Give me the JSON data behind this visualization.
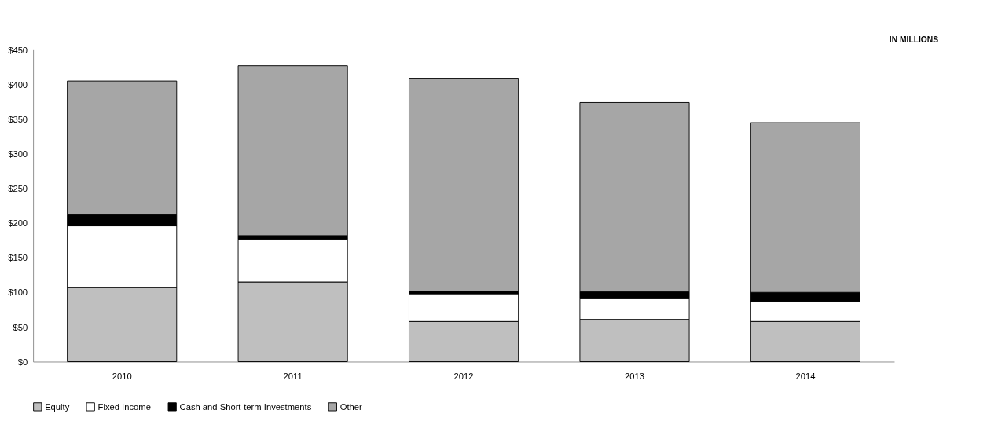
{
  "chart_data": {
    "type": "bar",
    "stacked": true,
    "categories": [
      "2010",
      "2011",
      "2012",
      "2013",
      "2014"
    ],
    "series": [
      {
        "name": "Equity",
        "color": "#bfbfbf",
        "values": [
          107,
          115,
          58,
          61,
          58
        ]
      },
      {
        "name": "Fixed Income",
        "color": "#ffffff",
        "values": [
          89,
          62,
          40,
          30,
          29
        ]
      },
      {
        "name": "Cash and Short-term Investments",
        "color": "#000000",
        "values": [
          16,
          5,
          4,
          10,
          13
        ]
      },
      {
        "name": "Other",
        "color": "#a6a6a6",
        "values": [
          193,
          245,
          307,
          273,
          245
        ]
      }
    ],
    "ylim": [
      0,
      450
    ],
    "yticks": [
      {
        "value": 0,
        "label": "$0"
      },
      {
        "value": 50,
        "label": "$50"
      },
      {
        "value": 100,
        "label": "$100"
      },
      {
        "value": 150,
        "label": "$150"
      },
      {
        "value": 200,
        "label": "$200"
      },
      {
        "value": 250,
        "label": "$250"
      },
      {
        "value": 300,
        "label": "$300"
      },
      {
        "value": 350,
        "label": "$350"
      },
      {
        "value": 400,
        "label": "$400"
      },
      {
        "value": 450,
        "label": "$450"
      }
    ],
    "annotations": [
      "IN MILLIONS"
    ],
    "grid": false,
    "legend": "bottom"
  }
}
